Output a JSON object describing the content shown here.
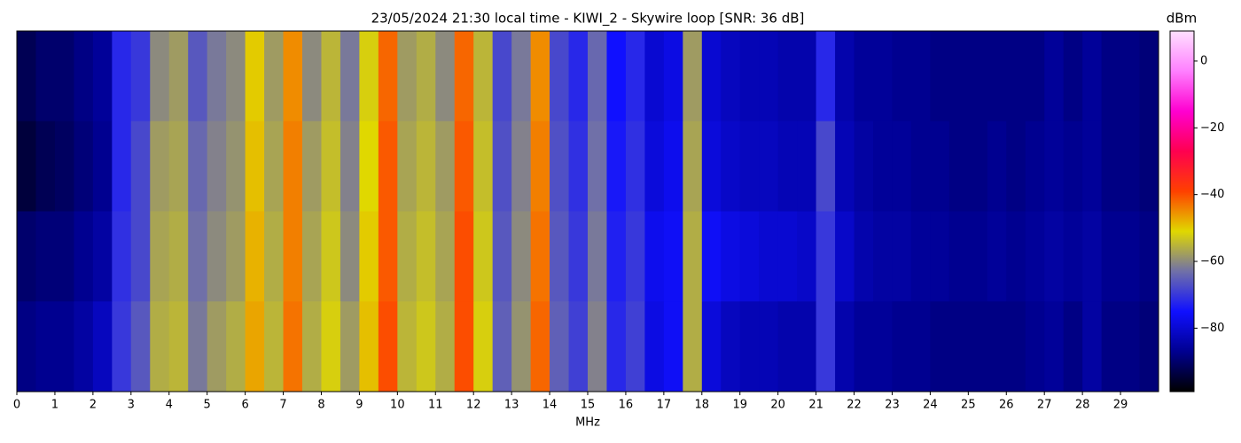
{
  "chart_data": {
    "type": "heatmap",
    "title": "23/05/2024 21:30 local time - KIWI_2 - Skywire loop [SNR: 36 dB]",
    "xlabel": "MHz",
    "cbar_label": "dBm",
    "xbins": [
      0,
      0.5,
      1,
      1.5,
      2,
      2.5,
      3,
      3.5,
      4,
      4.5,
      5,
      5.5,
      6,
      6.5,
      7,
      7.5,
      8,
      8.5,
      9,
      9.5,
      10,
      10.5,
      11,
      11.5,
      12,
      12.5,
      13,
      13.5,
      14,
      14.5,
      15,
      15.5,
      16,
      16.5,
      17,
      17.5,
      18,
      18.5,
      19,
      19.5,
      20,
      20.5,
      21,
      21.5,
      22,
      22.5,
      23,
      23.5,
      24,
      24.5,
      25,
      25.5,
      26,
      26.5,
      27,
      27.5,
      28,
      28.5,
      29,
      29.5,
      30
    ],
    "z": [
      [
        -92,
        -90,
        -90,
        -88,
        -86,
        -72,
        -70,
        -60,
        -58,
        -66,
        -62,
        -60,
        -50,
        -58,
        -45,
        -60,
        -55,
        -62,
        -52,
        -42,
        -58,
        -56,
        -60,
        -42,
        -55,
        -68,
        -62,
        -45,
        -68,
        -72,
        -64,
        -75,
        -72,
        -80,
        -78,
        -58,
        -80,
        -82,
        -83,
        -83,
        -84,
        -84,
        -72,
        -84,
        -86,
        -86,
        -87,
        -87,
        -88,
        -88,
        -88,
        -88,
        -88,
        -88,
        -86,
        -88,
        -86,
        -88,
        -88,
        -89
      ],
      [
        -94,
        -92,
        -91,
        -89,
        -87,
        -72,
        -68,
        -58,
        -57,
        -64,
        -61,
        -59,
        -49,
        -57,
        -44,
        -58,
        -54,
        -61,
        -51,
        -41,
        -57,
        -55,
        -58,
        -41,
        -54,
        -67,
        -61,
        -44,
        -67,
        -71,
        -63,
        -74,
        -71,
        -79,
        -77,
        -57,
        -79,
        -81,
        -82,
        -82,
        -83,
        -83,
        -68,
        -83,
        -85,
        -86,
        -86,
        -87,
        -87,
        -88,
        -88,
        -87,
        -88,
        -87,
        -86,
        -87,
        -86,
        -88,
        -88,
        -89
      ],
      [
        -90,
        -89,
        -89,
        -87,
        -85,
        -71,
        -68,
        -57,
        -56,
        -63,
        -60,
        -58,
        -48,
        -56,
        -44,
        -57,
        -53,
        -60,
        -50,
        -41,
        -56,
        -54,
        -57,
        -40,
        -53,
        -66,
        -60,
        -43,
        -66,
        -70,
        -62,
        -73,
        -70,
        -77,
        -76,
        -56,
        -76,
        -78,
        -79,
        -80,
        -80,
        -81,
        -70,
        -81,
        -84,
        -85,
        -85,
        -86,
        -86,
        -87,
        -87,
        -86,
        -87,
        -86,
        -85,
        -86,
        -85,
        -87,
        -87,
        -88
      ],
      [
        -88,
        -87,
        -87,
        -85,
        -82,
        -70,
        -66,
        -56,
        -55,
        -62,
        -58,
        -56,
        -47,
        -55,
        -43,
        -56,
        -52,
        -58,
        -49,
        -40,
        -55,
        -53,
        -56,
        -40,
        -52,
        -65,
        -59,
        -42,
        -65,
        -69,
        -61,
        -72,
        -69,
        -78,
        -76,
        -56,
        -79,
        -82,
        -83,
        -83,
        -84,
        -84,
        -70,
        -84,
        -86,
        -86,
        -87,
        -87,
        -88,
        -88,
        -88,
        -88,
        -88,
        -87,
        -86,
        -88,
        -85,
        -88,
        -88,
        -89
      ]
    ],
    "xlim": [
      0,
      30
    ],
    "xticks": [
      0,
      1,
      2,
      3,
      4,
      5,
      6,
      7,
      8,
      9,
      10,
      11,
      12,
      13,
      14,
      15,
      16,
      17,
      18,
      19,
      20,
      21,
      22,
      23,
      24,
      25,
      26,
      27,
      28,
      29
    ],
    "clim": [
      -99,
      9
    ],
    "cticks": [
      0,
      {
        "value": -20,
        "label": "−20"
      },
      {
        "value": -40,
        "label": "−40"
      },
      {
        "value": -60,
        "label": "−60"
      },
      {
        "value": -80,
        "label": "−80"
      }
    ],
    "colormap": [
      "#000000",
      "#000090",
      "#1010ff",
      "#7070a8",
      "#e0d800",
      "#ff4000",
      "#ff0050",
      "#ff00d0",
      "#ff80ff",
      "#ffe0ff"
    ]
  }
}
